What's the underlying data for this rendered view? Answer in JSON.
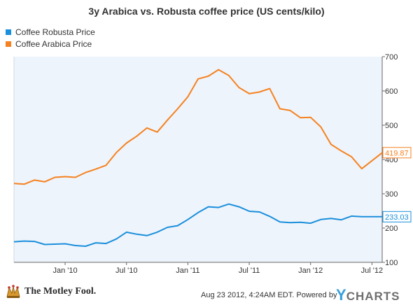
{
  "chart_data": {
    "type": "line",
    "title": "3y Arabica vs. Robusta coffee price (US cents/kilo)",
    "xlabel": "",
    "ylabel": "",
    "ylim": [
      100,
      700
    ],
    "y_ticks": [
      "100",
      "200",
      "300",
      "400",
      "500",
      "600",
      "700"
    ],
    "x_ticks": [
      "Jan '10",
      "Jul '10",
      "Jan '11",
      "Jul '11",
      "Jan '12",
      "Jul '12"
    ],
    "x_range": [
      "2009-08",
      "2012-08"
    ],
    "grid": false,
    "legend_position": "top-left",
    "series": [
      {
        "name": "Coffee Robusta Price",
        "color": "#1a8fdc",
        "end_label": "233.03",
        "x": [
          "2009-08",
          "2009-09",
          "2009-10",
          "2009-11",
          "2009-12",
          "2010-01",
          "2010-02",
          "2010-03",
          "2010-04",
          "2010-05",
          "2010-06",
          "2010-07",
          "2010-08",
          "2010-09",
          "2010-10",
          "2010-11",
          "2010-12",
          "2011-01",
          "2011-02",
          "2011-03",
          "2011-04",
          "2011-05",
          "2011-06",
          "2011-07",
          "2011-08",
          "2011-09",
          "2011-10",
          "2011-11",
          "2011-12",
          "2012-01",
          "2012-02",
          "2012-03",
          "2012-04",
          "2012-05",
          "2012-06",
          "2012-07"
        ],
        "values": [
          160,
          162,
          161,
          152,
          153,
          154,
          149,
          147,
          157,
          155,
          168,
          188,
          182,
          178,
          188,
          202,
          207,
          225,
          245,
          262,
          260,
          270,
          262,
          249,
          247,
          234,
          218,
          216,
          217,
          214,
          225,
          228,
          224,
          235,
          233.03,
          233.03
        ]
      },
      {
        "name": "Coffee Arabica Price",
        "color": "#f58220",
        "end_label": "419.87",
        "x": [
          "2009-08",
          "2009-09",
          "2009-10",
          "2009-11",
          "2009-12",
          "2010-01",
          "2010-02",
          "2010-03",
          "2010-04",
          "2010-05",
          "2010-06",
          "2010-07",
          "2010-08",
          "2010-09",
          "2010-10",
          "2010-11",
          "2010-12",
          "2011-01",
          "2011-02",
          "2011-03",
          "2011-04",
          "2011-05",
          "2011-06",
          "2011-07",
          "2011-08",
          "2011-09",
          "2011-10",
          "2011-11",
          "2011-12",
          "2012-01",
          "2012-02",
          "2012-03",
          "2012-04",
          "2012-05",
          "2012-06",
          "2012-07"
        ],
        "values": [
          330,
          328,
          340,
          335,
          348,
          350,
          348,
          362,
          372,
          383,
          420,
          448,
          468,
          492,
          480,
          515,
          548,
          583,
          635,
          643,
          662,
          645,
          610,
          592,
          597,
          607,
          548,
          543,
          522,
          523,
          495,
          444,
          425,
          408,
          373,
          419.87
        ]
      }
    ]
  },
  "footer": {
    "brand": "The Motley Fool.",
    "timestamp": "Aug 23 2012, 4:24AM EDT.  Powered by",
    "ycharts_y": "Y",
    "ycharts_rest": "CHARTS"
  },
  "colors": {
    "plot_background": "#eef4fb",
    "axis": "#666666",
    "jester": "#d8982e"
  }
}
